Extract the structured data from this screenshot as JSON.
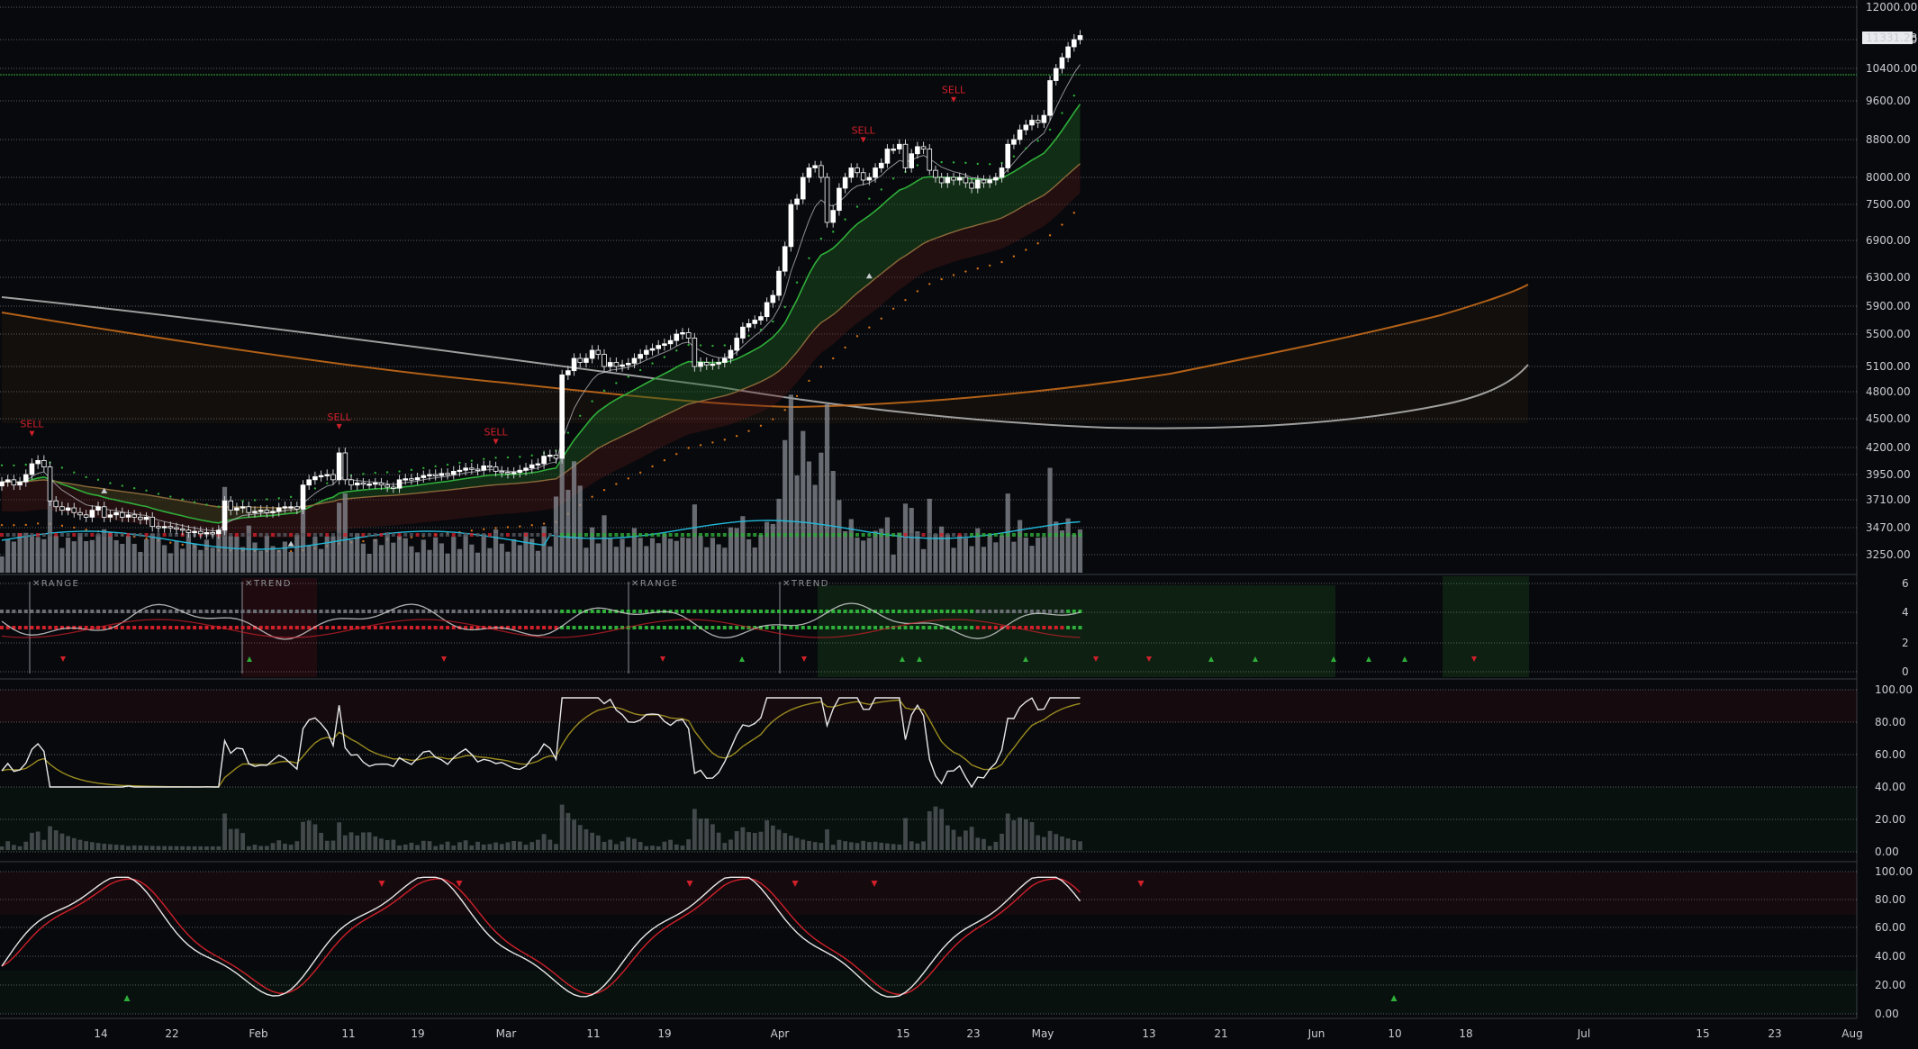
{
  "chart_data": {
    "type": "candlestick",
    "price_axis": {
      "ticks": [
        "12000.00",
        "11200.00",
        "10400.00",
        "9600.00",
        "8800.00",
        "8000.00",
        "7500.00",
        "6900.00",
        "6300.00",
        "5900.00",
        "5500.00",
        "5100.00",
        "4800.00",
        "4500.00",
        "4200.00",
        "3950.00",
        "3710.00",
        "3470.00",
        "3250.00"
      ],
      "current_price": "11331.28"
    },
    "x_axis_labels": [
      "14",
      "22",
      "Feb",
      "11",
      "19",
      "Mar",
      "11",
      "19",
      "Apr",
      "15",
      "23",
      "May",
      "13",
      "21",
      "Jun",
      "10",
      "18",
      "Jul",
      "15",
      "23",
      "Aug"
    ],
    "candles": [
      3880,
      3900,
      3850,
      3880,
      3950,
      4050,
      4080,
      4020,
      3700,
      3650,
      3620,
      3640,
      3600,
      3580,
      3560,
      3620,
      3650,
      3560,
      3580,
      3600,
      3560,
      3580,
      3560,
      3540,
      3560,
      3480,
      3470,
      3480,
      3470,
      3460,
      3450,
      3430,
      3440,
      3420,
      3430,
      3420,
      3450,
      3700,
      3620,
      3640,
      3650,
      3600,
      3610,
      3620,
      3600,
      3610,
      3640,
      3650,
      3650,
      3630,
      3850,
      3900,
      3930,
      3940,
      3950,
      3900,
      4150,
      3900,
      3850,
      3870,
      3860,
      3860,
      3870,
      3850,
      3830,
      3820,
      3900,
      3910,
      3900,
      3920,
      3940,
      3950,
      3940,
      3960,
      3950,
      3980,
      3990,
      4010,
      4000,
      3990,
      4030,
      4020,
      3980,
      3970,
      3960,
      3970,
      3990,
      4010,
      4040,
      4050,
      4120,
      4130,
      4100,
      5000,
      5050,
      5200,
      5150,
      5200,
      5300,
      5250,
      5100,
      5150,
      5100,
      5120,
      5140,
      5200,
      5250,
      5300,
      5320,
      5360,
      5380,
      5420,
      5500,
      5520,
      5450,
      5100,
      5150,
      5120,
      5130,
      5150,
      5200,
      5300,
      5450,
      5600,
      5650,
      5700,
      5750,
      5950,
      6050,
      6400,
      6800,
      7500,
      7600,
      8000,
      8200,
      8250,
      8000,
      7200,
      7400,
      7800,
      8000,
      8200,
      8100,
      7950,
      8000,
      8200,
      8300,
      8600,
      8600,
      8700,
      8200,
      8500,
      8650,
      8600,
      8150,
      8000,
      7900,
      8000,
      7950,
      8000,
      7900,
      7800,
      7950,
      7900,
      7950,
      8000,
      8200,
      8700,
      8800,
      9000,
      9100,
      9200,
      9150,
      9300,
      10100,
      10400,
      10700,
      11000,
      11200,
      11300
    ],
    "indicators": {
      "range_trend_labels": [
        "RANGE",
        "TREND",
        "RANGE",
        "TREND"
      ],
      "signals": [
        "SELL",
        "SELL",
        "SELL",
        "SELL",
        "SELL"
      ],
      "panel1_ticks": [
        "6",
        "4",
        "2",
        "0"
      ],
      "panel2_ticks": [
        "100.00",
        "80.00",
        "60.00",
        "40.00",
        "20.00",
        "0.00"
      ],
      "panel3_ticks": [
        "100.00",
        "80.00",
        "60.00",
        "40.00",
        "20.00",
        "0.00"
      ]
    },
    "colors": {
      "background": "#07090c",
      "grid": "#d8dce2",
      "green": "#2fae3a",
      "red": "#d0202a",
      "orange": "#d0701a",
      "gray_ma": "#b8b8b8",
      "cyan": "#22b8d8",
      "candle_up": "#ffffff",
      "candle_wick": "#c9ccd1"
    }
  }
}
